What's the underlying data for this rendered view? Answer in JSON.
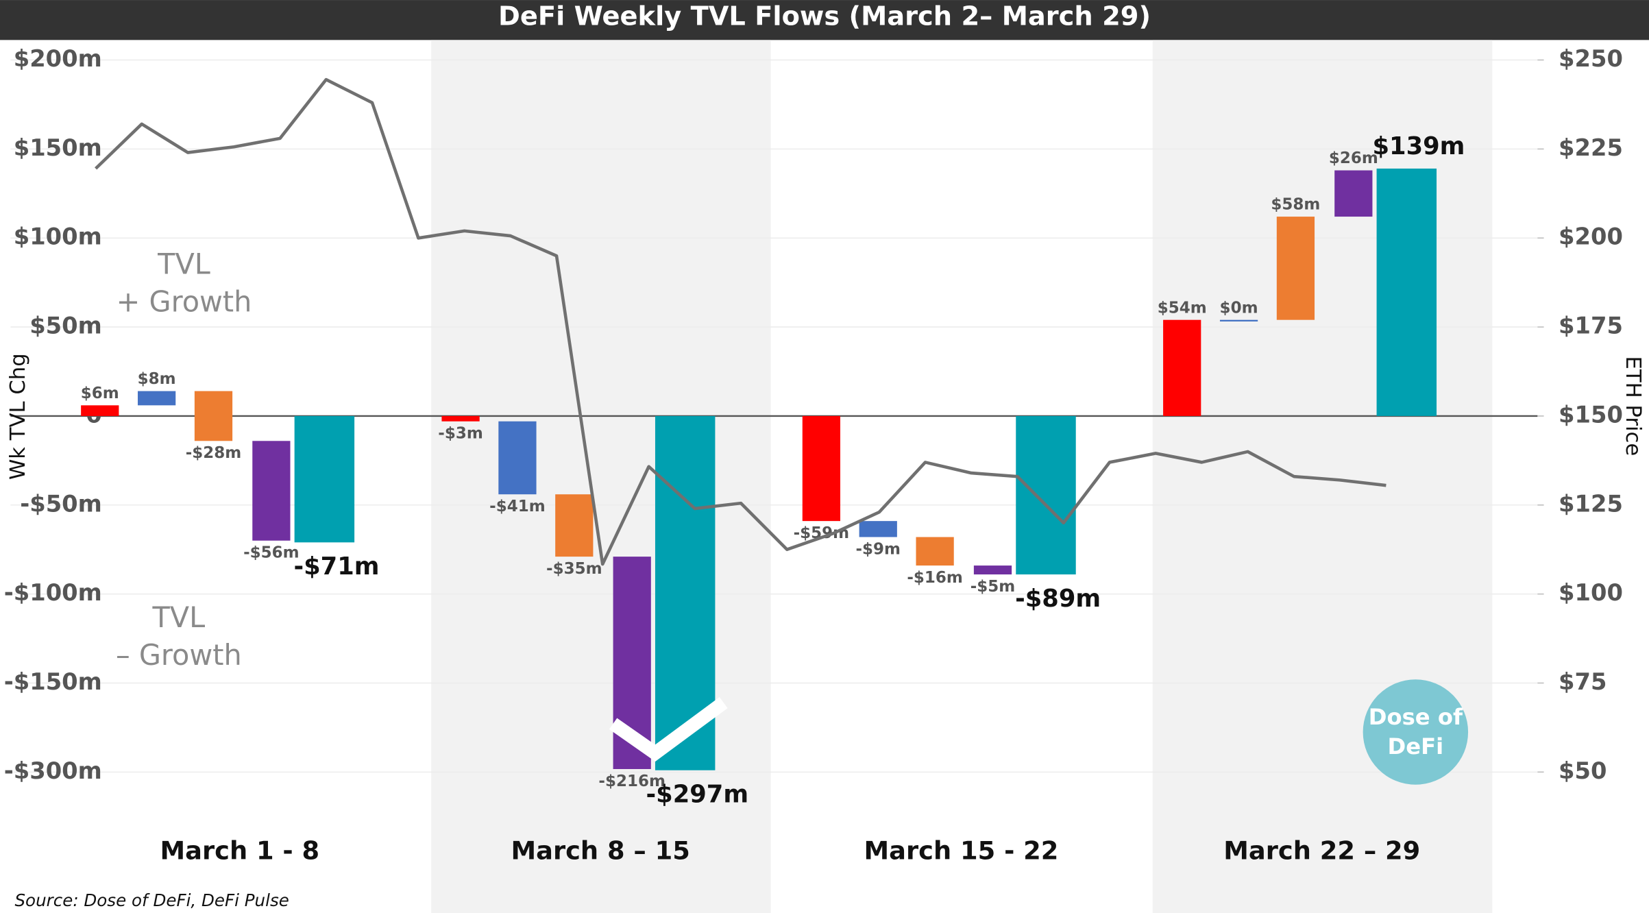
{
  "chart_data": {
    "type": "waterfall",
    "title": "DeFi Weekly TVL Flows (March 2– March 29)",
    "categories": [
      "March 1 - 8",
      "March 8 – 15",
      "March 15 - 22",
      "March 22 – 29"
    ],
    "series": [
      {
        "color": "#ff0000",
        "values": [
          6,
          -3,
          -59,
          54
        ],
        "value_labels": [
          "$6m",
          "-$3m",
          "-$59m",
          "$54m"
        ]
      },
      {
        "color": "#4472c4",
        "values": [
          8,
          -41,
          -9,
          0
        ],
        "value_labels": [
          "$8m",
          "-$41m",
          "-$9m",
          "$0m"
        ]
      },
      {
        "color": "#ed7d31",
        "values": [
          -28,
          -35,
          -16,
          58
        ],
        "value_labels": [
          "-$28m",
          "-$35m",
          "-$16m",
          "$58m"
        ]
      },
      {
        "color": "#7030a0",
        "values": [
          -56,
          -216,
          -5,
          26
        ],
        "value_labels": [
          "-$56m",
          "-$216m",
          "-$5m",
          "$26m"
        ]
      }
    ],
    "totals": {
      "color": "#00a0b0",
      "values": [
        -71,
        -297,
        -89,
        139
      ],
      "value_labels": [
        "-$71m",
        "-$297m",
        "-$89m",
        "$139m"
      ]
    },
    "line": {
      "color": "#707070",
      "axis": "y2",
      "values": [
        219.5,
        232,
        224,
        225.6,
        228,
        244.5,
        238,
        200,
        202,
        200.6,
        195,
        108.4,
        135.8,
        124,
        125.5,
        112.5,
        117,
        123,
        137,
        134,
        133,
        120,
        137,
        139.5,
        137,
        140,
        133,
        132,
        130.5
      ]
    },
    "ylabel": "Wk TVL Chg",
    "y2label": "ETH Price",
    "ylim": [
      -300,
      200
    ],
    "broken_axis": true,
    "yticks": [
      {
        "value": 200,
        "label": "$200m"
      },
      {
        "value": 150,
        "label": "$150m"
      },
      {
        "value": 100,
        "label": "$100m"
      },
      {
        "value": 50,
        "label": "$50m"
      },
      0,
      {
        "value": -50,
        "label": "-$50m"
      },
      {
        "value": -100,
        "label": "-$100m"
      },
      {
        "value": -150,
        "label": "-$150m"
      },
      {
        "value": -300,
        "label": "-$300m"
      }
    ],
    "y2lim": [
      50,
      250
    ],
    "y2ticks": [
      {
        "value": 50,
        "label": "$50"
      },
      {
        "value": 75,
        "label": "$75"
      },
      {
        "value": 100,
        "label": "$100"
      },
      {
        "value": 125,
        "label": "$125"
      },
      {
        "value": 150,
        "label": "$150"
      },
      {
        "value": 175,
        "label": "$175"
      },
      {
        "value": 200,
        "label": "$200"
      },
      {
        "value": 225,
        "label": "$225"
      },
      {
        "value": 250,
        "label": "$250"
      }
    ],
    "annotations": [
      "TVL",
      "+ Growth",
      "TVL",
      "– Growth"
    ],
    "logo": [
      "Dose of",
      "DeFi"
    ],
    "source": "Source: Dose of DeFi, DeFi Pulse"
  }
}
